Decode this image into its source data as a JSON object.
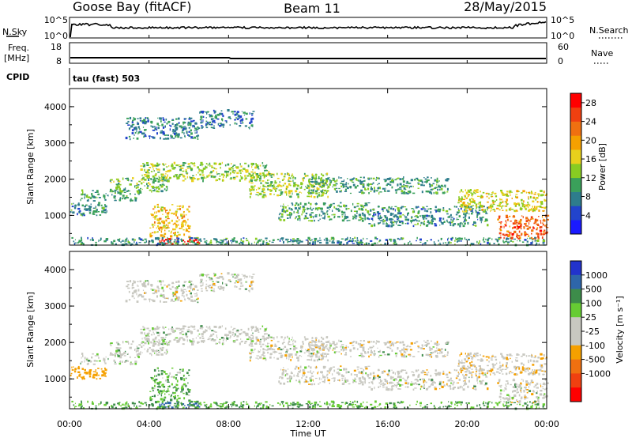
{
  "header": {
    "station": "Goose Bay (fitACF)",
    "beam": "Beam 11",
    "date": "28/May/2015"
  },
  "panels": {
    "nsky": {
      "label": "N.Sky",
      "ticks": [
        "10^5",
        "10^0"
      ],
      "right_label": "N.Search",
      "right_ticks": [
        "10^5",
        "10^0"
      ]
    },
    "freq": {
      "label_line1": "Freq.",
      "label_line2": "[MHz]",
      "ticks": [
        "18",
        "8"
      ],
      "right_label": "Nave",
      "right_ticks": [
        "60",
        "0"
      ]
    },
    "cpid": {
      "label": "CPID",
      "value": "tau (fast) 503"
    }
  },
  "axes": {
    "ylabel": "Slant Range [km]",
    "xlabel": "Time UT",
    "xticks": [
      "00:00",
      "04:00",
      "08:00",
      "12:00",
      "16:00",
      "20:00",
      "00:00"
    ],
    "yticks": [
      "1000",
      "2000",
      "3000",
      "4000"
    ]
  },
  "colorbars": {
    "power": {
      "label": "Power [dB]",
      "ticks": [
        "4",
        "8",
        "12",
        "16",
        "20",
        "24",
        "28"
      ],
      "colors": [
        "#1a1aff",
        "#2244cc",
        "#2e7d8c",
        "#3aa05a",
        "#88cc22",
        "#e8d01c",
        "#f5a000",
        "#f07010",
        "#f04010",
        "#ff0000"
      ]
    },
    "velocity": {
      "label": "Velocity [m s⁻¹]",
      "ticks": [
        "1000",
        "500",
        "100",
        "25",
        "-25",
        "-100",
        "-500",
        "-1000"
      ],
      "colors": [
        "#2233cc",
        "#2e66aa",
        "#3d8c4a",
        "#66cc33",
        "#c8c8c0",
        "#c8c8c0",
        "#f5a000",
        "#f07010",
        "#f04010",
        "#ff0000"
      ]
    }
  },
  "chart_data": {
    "type": "heatmap",
    "x_range_hours": [
      0,
      24
    ],
    "y_range_km": [
      180,
      4500
    ],
    "power_range_db": [
      0,
      30
    ],
    "velocity_range": [
      -1000,
      1000
    ],
    "bands": [
      {
        "start_h": 0.0,
        "end_h": 2.0,
        "range_km": [
          1000,
          1350
        ],
        "power_db": 9,
        "velocity": -60
      },
      {
        "start_h": 0.5,
        "end_h": 3.5,
        "range_km": [
          1400,
          1700
        ],
        "power_db": 10,
        "velocity": 10
      },
      {
        "start_h": 2.0,
        "end_h": 5.0,
        "range_km": [
          1650,
          2050
        ],
        "power_db": 12,
        "velocity": 5
      },
      {
        "start_h": 2.8,
        "end_h": 6.5,
        "range_km": [
          3100,
          3700
        ],
        "power_db": 8,
        "velocity": 0
      },
      {
        "start_h": 6.5,
        "end_h": 9.2,
        "range_km": [
          3400,
          3900
        ],
        "power_db": 7,
        "velocity": 0
      },
      {
        "start_h": 3.5,
        "end_h": 10.0,
        "range_km": [
          1950,
          2450
        ],
        "power_db": 14,
        "velocity": 5
      },
      {
        "start_h": 4.0,
        "end_h": 6.0,
        "range_km": [
          400,
          1300
        ],
        "power_db": 18,
        "velocity": 50
      },
      {
        "start_h": 4.5,
        "end_h": 6.5,
        "range_km": [
          200,
          350
        ],
        "power_db": 28,
        "velocity": 300
      },
      {
        "start_h": 9.0,
        "end_h": 13.0,
        "range_km": [
          1500,
          2150
        ],
        "power_db": 14,
        "velocity": 0
      },
      {
        "start_h": 10.5,
        "end_h": 15.0,
        "range_km": [
          850,
          1350
        ],
        "power_db": 10,
        "velocity": 0
      },
      {
        "start_h": 12.0,
        "end_h": 19.0,
        "range_km": [
          1600,
          2050
        ],
        "power_db": 10,
        "velocity": 0
      },
      {
        "start_h": 15.0,
        "end_h": 21.0,
        "range_km": [
          700,
          1250
        ],
        "power_db": 9,
        "velocity": 0
      },
      {
        "start_h": 19.5,
        "end_h": 24.0,
        "range_km": [
          1100,
          1700
        ],
        "power_db": 16,
        "velocity": -10
      },
      {
        "start_h": 21.5,
        "end_h": 24.0,
        "range_km": [
          350,
          1000
        ],
        "power_db": 24,
        "velocity": 0
      },
      {
        "start_h": 0.0,
        "end_h": 24.0,
        "range_km": [
          180,
          380
        ],
        "power_db": 9,
        "velocity": 60
      }
    ]
  }
}
